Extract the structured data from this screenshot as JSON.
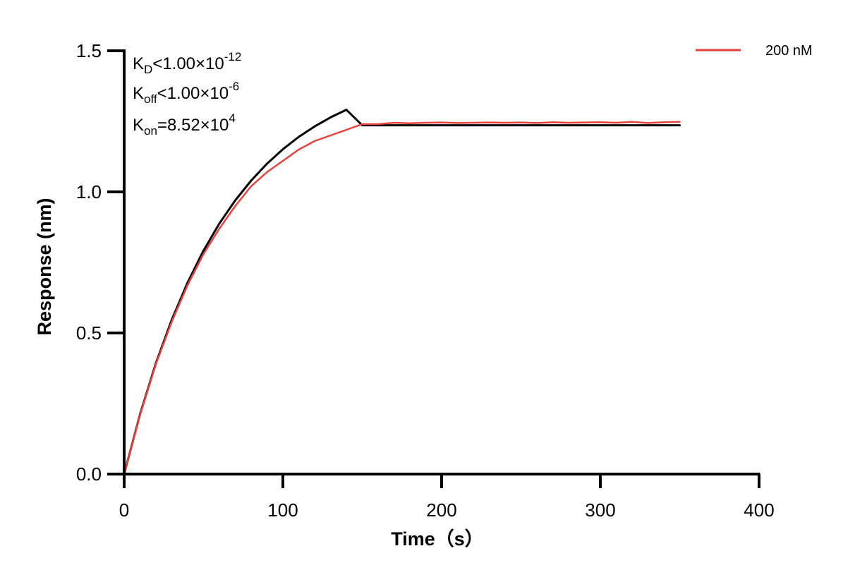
{
  "chart_data": {
    "type": "line",
    "xlabel": "Time（s）",
    "ylabel": "Response (nm)",
    "xlim": [
      0,
      400
    ],
    "ylim": [
      0,
      1.5
    ],
    "x_ticks": [
      "0",
      "100",
      "200",
      "300",
      "400"
    ],
    "y_ticks": [
      "0.0",
      "0.5",
      "1.0",
      "1.5"
    ],
    "grid": false,
    "legend_position": "top-right",
    "annotations": [
      {
        "base": "K",
        "sub": "D",
        "rel": "<",
        "value": "1.00×10",
        "sup": "-12"
      },
      {
        "base": "K",
        "sub": "off",
        "rel": "<",
        "value": "1.00×10",
        "sup": "-6"
      },
      {
        "base": "K",
        "sub": "on",
        "rel": "=",
        "value": "8.52×10",
        "sup": "4"
      }
    ],
    "series": [
      {
        "name": "200 nM",
        "color": "#e8413c",
        "role": "measured",
        "x": [
          0,
          10,
          20,
          30,
          40,
          50,
          60,
          70,
          80,
          90,
          100,
          110,
          120,
          130,
          140,
          150,
          160,
          170,
          180,
          190,
          200,
          210,
          220,
          230,
          240,
          250,
          260,
          270,
          280,
          290,
          300,
          310,
          320,
          330,
          340,
          350
        ],
        "y": [
          0.0,
          0.21,
          0.39,
          0.54,
          0.67,
          0.78,
          0.87,
          0.95,
          1.02,
          1.07,
          1.11,
          1.15,
          1.18,
          1.2,
          1.22,
          1.24,
          1.24,
          1.245,
          1.243,
          1.245,
          1.246,
          1.244,
          1.245,
          1.246,
          1.245,
          1.246,
          1.244,
          1.247,
          1.245,
          1.246,
          1.247,
          1.245,
          1.248,
          1.244,
          1.247,
          1.248
        ]
      },
      {
        "name": "",
        "color": "#000000",
        "role": "fit",
        "x": [
          0,
          10,
          20,
          30,
          40,
          50,
          60,
          70,
          80,
          90,
          100,
          110,
          120,
          130,
          140,
          150,
          200,
          250,
          300,
          350
        ],
        "y": [
          0.0,
          0.212,
          0.393,
          0.547,
          0.679,
          0.792,
          0.888,
          0.97,
          1.04,
          1.1,
          1.151,
          1.195,
          1.232,
          1.264,
          1.291,
          1.236,
          1.236,
          1.236,
          1.236,
          1.236
        ]
      }
    ]
  }
}
